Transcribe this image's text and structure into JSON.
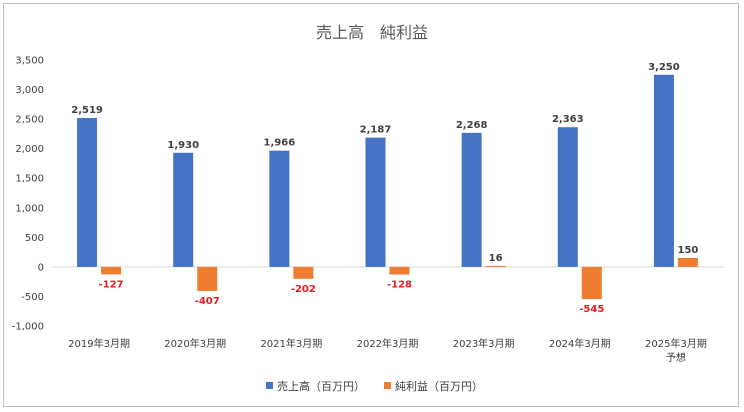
{
  "chart_data": {
    "type": "bar",
    "title": "売上高　純利益",
    "categories": [
      "2019年3月期",
      "2020年3月期",
      "2021年3月期",
      "2022年3月期",
      "2023年3月期",
      "2024年3月期",
      "2025年3月期\n予想"
    ],
    "series": [
      {
        "name": "売上高（百万円）",
        "color": "#4472c4",
        "values": [
          2519,
          1930,
          1966,
          2187,
          2268,
          2363,
          3250
        ]
      },
      {
        "name": "純利益（百万円）",
        "color": "#ed7d31",
        "values": [
          -127,
          -407,
          -202,
          -128,
          16,
          -545,
          150
        ]
      }
    ],
    "data_labels": {
      "series_0": [
        "2,519",
        "1,930",
        "1,966",
        "2,187",
        "2,268",
        "2,363",
        "3,250"
      ],
      "series_1": [
        "-127",
        "-407",
        "-202",
        "-128",
        "16",
        "-545",
        "150"
      ]
    },
    "positive_label_color": "#404040",
    "negative_label_color": "#e02020",
    "ylim": [
      -1000,
      3500
    ],
    "yticks": [
      -1000,
      -500,
      0,
      500,
      1000,
      1500,
      2000,
      2500,
      3000,
      3500
    ],
    "ytick_labels": [
      "-1,000",
      "-500",
      "0",
      "500",
      "1,000",
      "1,500",
      "2,000",
      "2,500",
      "3,000",
      "3,500"
    ],
    "grid": false,
    "legend_position": "bottom"
  }
}
